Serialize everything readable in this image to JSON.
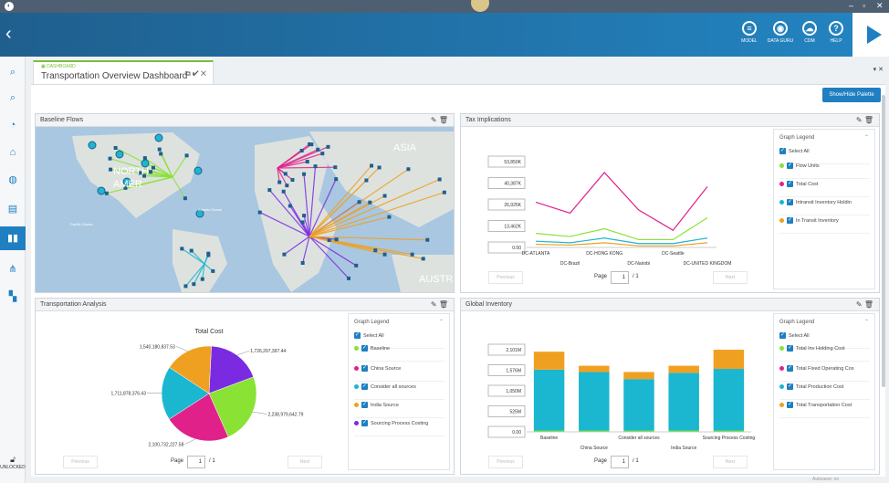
{
  "window": {
    "minimize": "–",
    "maximize": "▫",
    "close": "✕"
  },
  "header": {
    "back": "‹",
    "buttons": [
      {
        "label": "MODEL",
        "icon": "database-icon",
        "glyph": "≡"
      },
      {
        "label": "DATA GURU",
        "icon": "guru-icon",
        "glyph": "◉"
      },
      {
        "label": "CDM",
        "icon": "cloud-icon",
        "glyph": "☁"
      },
      {
        "label": "HELP",
        "icon": "help-icon",
        "glyph": "?"
      }
    ]
  },
  "sidebar": {
    "items": [
      "search-table-icon",
      "search-grid-icon",
      "pie-icon",
      "building-icon",
      "globe-icon",
      "table-icon",
      "bar-chart-icon",
      "network-icon",
      "dashboard-icon"
    ],
    "lock_label": "UNLOCKED"
  },
  "tab": {
    "small": "▣ DASHBOARD",
    "title": "Transportation Overview Dashboard",
    "controls": "⧉ ✔ ✕"
  },
  "tabbar_close": "▾ ✕",
  "palette_button": "Show/Hide Palette",
  "panels": {
    "baseline": {
      "title": "Baseline Flows"
    },
    "tax": {
      "title": "Tax Implications"
    },
    "transport": {
      "title": "Transportation Analysis"
    },
    "inventory": {
      "title": "Global Inventory"
    }
  },
  "tools": "✎ 🗑",
  "map": {
    "labels": [
      "ASIA",
      "NORTH",
      "AMER",
      "Atlantic Ocean",
      "Pacific Ocean",
      "AUSTRA"
    ]
  },
  "tax_chart": {
    "chart_data": {
      "type": "line",
      "categories": [
        "DC-ATLANTA",
        "DC-Brazil",
        "DC-HONG KONG",
        "DC-Nairobi",
        "DC-Seattle",
        "DC-UNITED KINGDOM"
      ],
      "yticks": [
        "53,850K",
        "40,387K",
        "26,925K",
        "13,462K",
        "0.00"
      ],
      "ylim": [
        0,
        55000
      ],
      "series": [
        {
          "name": "Flow Units",
          "color": "#8ae234",
          "values": [
            9000,
            7000,
            12000,
            5000,
            5000,
            19000
          ]
        },
        {
          "name": "Total Cost",
          "color": "#e0218a",
          "values": [
            29000,
            22000,
            48000,
            24000,
            11000,
            39000
          ]
        },
        {
          "name": "Intransit Inventory Holdin",
          "color": "#1bb6cf",
          "values": [
            4000,
            3000,
            6000,
            2500,
            2500,
            6000
          ]
        },
        {
          "name": "In Transit Inventory",
          "color": "#f0a020",
          "values": [
            2000,
            1500,
            3000,
            1000,
            1000,
            3000
          ]
        }
      ]
    },
    "page_label": "Page",
    "page": "1",
    "total": "/ 1"
  },
  "transport_chart": {
    "chart_data": {
      "type": "pie",
      "title": "Total Cost",
      "slices": [
        {
          "name": "Baseline",
          "color": "#8ae234",
          "value": 2238979642.79,
          "label": "2,238,979,642.79"
        },
        {
          "name": "China Source",
          "color": "#e0218a",
          "value": 2100732227.58,
          "label": "2,100,732,227.58"
        },
        {
          "name": "Consider all sources",
          "color": "#1bb6cf",
          "value": 1711878376.43,
          "label": "1,711,878,376.43"
        },
        {
          "name": "India Source",
          "color": "#f0a020",
          "value": 1540180837.53,
          "label": "1,540,180,837.53"
        },
        {
          "name": "Sourcing Process Costing",
          "color": "#7a2be2",
          "value": 1726297397.44,
          "label": "1,726,297,397.44"
        }
      ]
    },
    "page_label": "Page",
    "page": "1",
    "total": "/ 1"
  },
  "inventory_chart": {
    "chart_data": {
      "type": "bar",
      "categories": [
        "Baseline",
        "China Source",
        "Consider all sources",
        "India Source",
        "Sourcing Process Costing"
      ],
      "yticks": [
        "2,101M",
        "1,576M",
        "1,050M",
        "525M",
        "0.00"
      ],
      "ylim": [
        0,
        2101
      ],
      "series": [
        {
          "name": "Total Inv Holding Cost",
          "color": "#8ae234",
          "values": [
            30,
            30,
            30,
            30,
            30
          ]
        },
        {
          "name": "Total Fixed Operating Cos",
          "color": "#e0218a",
          "values": [
            0,
            0,
            0,
            0,
            0
          ]
        },
        {
          "name": "Total Production Cost",
          "color": "#1bb6cf",
          "values": [
            1560,
            1500,
            1320,
            1480,
            1580
          ]
        },
        {
          "name": "Total Transportation Cost",
          "color": "#f0a020",
          "values": [
            460,
            160,
            180,
            180,
            490
          ]
        }
      ]
    },
    "page_label": "Page",
    "page": "1",
    "total": "/ 1"
  },
  "legend_title": "Graph Legend",
  "select_all": "Select All",
  "previous": "Previous",
  "next": "Next",
  "status": "Autosave: on"
}
